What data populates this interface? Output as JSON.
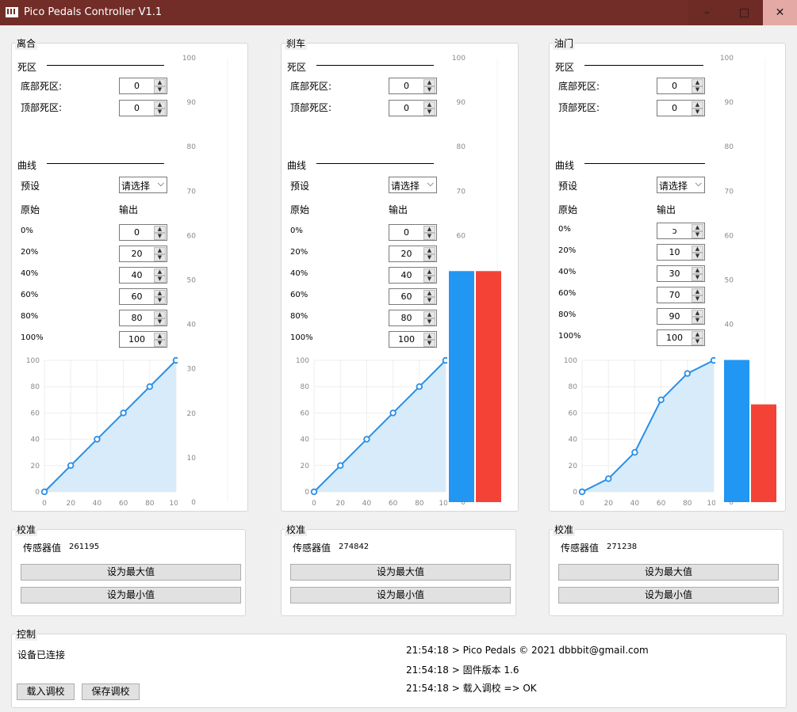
{
  "window": {
    "title": "Pico Pedals Controller V1.1",
    "min": "–",
    "max": "□",
    "close": "✕"
  },
  "labels": {
    "deadzone": "死区",
    "bottom_deadzone": "底部死区:",
    "top_deadzone": "顶部死区:",
    "curve": "曲线",
    "preset": "预设",
    "original": "原始",
    "output": "输出",
    "calib": "校准",
    "sensor": "传感器值",
    "set_max": "设为最大值",
    "set_min": "设为最小值"
  },
  "pct_labels": [
    "0%",
    "20%",
    "40%",
    "60%",
    "80%",
    "100%"
  ],
  "pedals": [
    {
      "name": "离合",
      "bottom_dz": "0",
      "top_dz": "0",
      "preset": "请选择",
      "outputs": [
        "0",
        "20",
        "40",
        "60",
        "80",
        "100"
      ],
      "sensor_value": "261195"
    },
    {
      "name": "刹车",
      "bottom_dz": "0",
      "top_dz": "0",
      "preset": "请选择",
      "outputs": [
        "0",
        "20",
        "40",
        "60",
        "80",
        "100"
      ],
      "sensor_value": "274842"
    },
    {
      "name": "油门",
      "bottom_dz": "0",
      "top_dz": "0",
      "preset": "请选择",
      "outputs": [
        "ɔ",
        "10",
        "30",
        "70",
        "90",
        "100"
      ],
      "sensor_value": "271238"
    }
  ],
  "chart_data": [
    {
      "type": "area",
      "x": [
        0,
        20,
        40,
        60,
        80,
        100
      ],
      "y": [
        0,
        20,
        40,
        60,
        80,
        100
      ],
      "xlim": [
        0,
        100
      ],
      "ylim": [
        0,
        100
      ]
    },
    {
      "type": "area",
      "x": [
        0,
        20,
        40,
        60,
        80,
        100
      ],
      "y": [
        0,
        20,
        40,
        60,
        80,
        100
      ],
      "xlim": [
        0,
        100
      ],
      "ylim": [
        0,
        100
      ]
    },
    {
      "type": "area",
      "x": [
        0,
        20,
        40,
        60,
        80,
        100
      ],
      "y": [
        0,
        10,
        30,
        70,
        90,
        100
      ],
      "xlim": [
        0,
        100
      ],
      "ylim": [
        0,
        100
      ]
    },
    {
      "type": "bar",
      "categories": [
        "raw",
        "output"
      ],
      "values": [
        0,
        0
      ],
      "ylim": [
        0,
        100
      ]
    },
    {
      "type": "bar",
      "categories": [
        "raw",
        "output"
      ],
      "values": [
        52,
        52
      ],
      "ylim": [
        0,
        100
      ]
    },
    {
      "type": "bar",
      "categories": [
        "raw",
        "output"
      ],
      "values": [
        32,
        22
      ],
      "ylim": [
        0,
        100
      ]
    }
  ],
  "curve_ticks": [
    "0",
    "20",
    "40",
    "60",
    "80",
    "100"
  ],
  "bar_ticks": [
    "100",
    "90",
    "80",
    "70",
    "60",
    "50",
    "40",
    "30",
    "20",
    "10",
    "0"
  ],
  "colors": {
    "raw": "#2196f3",
    "output": "#f44336",
    "line": "#2a8ee6",
    "fill": "#d8ebfa",
    "titlebar": "#722d28"
  },
  "control": {
    "label": "控制",
    "status": "设备已连接",
    "load_btn": "载入调校",
    "save_btn": "保存调校",
    "log": [
      "21:54:18 > Pico Pedals © 2021 dbbbit@gmail.com",
      "21:54:18 > 固件版本 1.6",
      "21:54:18 > 载入调校 => OK"
    ]
  }
}
